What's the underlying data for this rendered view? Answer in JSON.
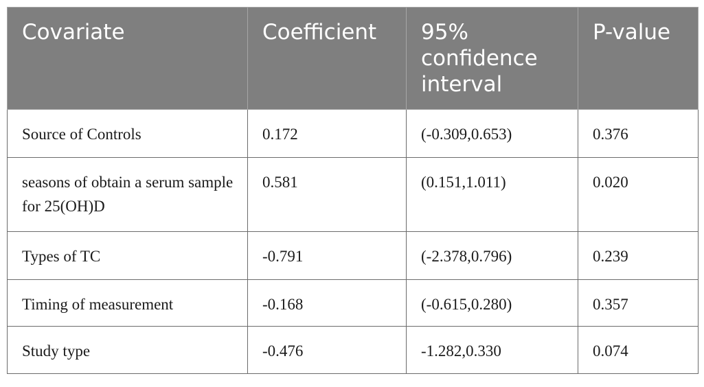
{
  "table": {
    "headers": [
      "Covariate",
      "Coefficient",
      "95% confidence interval",
      "P-value"
    ],
    "rows": [
      [
        "Source of Controls",
        "0.172",
        "(-0.309,0.653)",
        "0.376"
      ],
      [
        "seasons of obtain a serum sample for 25(OH)D",
        "0.581",
        "(0.151,1.011)",
        "0.020"
      ],
      [
        "Types of TC",
        "-0.791",
        "(-2.378,0.796)",
        "0.239"
      ],
      [
        "Timing of measurement",
        "-0.168",
        "(-0.615,0.280)",
        "0.357"
      ],
      [
        "Study type",
        "-0.476",
        "-1.282,0.330",
        "0.074"
      ]
    ]
  },
  "colors": {
    "header_bg": "#7f7f7f",
    "header_text": "#ffffff",
    "border": "#6b6b6b"
  }
}
